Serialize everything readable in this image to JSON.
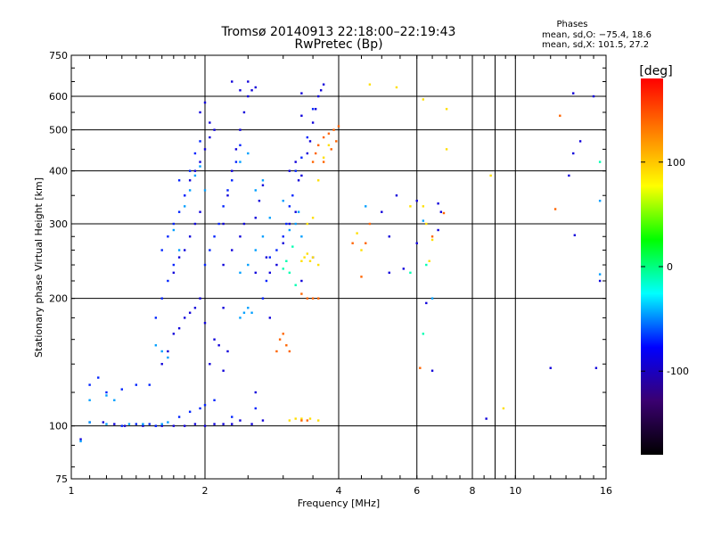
{
  "chart_data": {
    "type": "scatter",
    "title": "Tromsø 20140913 22:18:00–22:19:43",
    "subtitle": "RwPretec (Bp)",
    "xlabel": "Frequency [MHz]",
    "ylabel": "Stationary phase Virtual Height [km]",
    "x_scale": "log",
    "y_scale": "log",
    "xlim": [
      1,
      16
    ],
    "ylim": [
      75,
      750
    ],
    "x_ticks": [
      1,
      2,
      4,
      6,
      8,
      10,
      16
    ],
    "y_ticks": [
      75,
      100,
      200,
      300,
      400,
      500,
      600,
      750
    ],
    "x_grid": [
      2,
      4,
      6,
      8,
      9,
      10
    ],
    "y_grid": [
      100,
      200,
      300,
      400,
      500,
      600
    ],
    "grid": true,
    "phase_stats": {
      "header": "Phases",
      "line_o": "mean, sd,O: −75.4, 18.6",
      "line_x": "mean, sd,X: 101.5, 27.2"
    },
    "colorbar": {
      "label": "[deg]",
      "range": [
        -180,
        180
      ],
      "ticks": [
        100,
        0,
        -100
      ],
      "colors": [
        "#ff0000",
        "#ff8000",
        "#ffff00",
        "#00ff00",
        "#00ffff",
        "#0000ff",
        "#3a0070",
        "#000000"
      ]
    },
    "series": [
      {
        "phase_deg": -90,
        "points": [
          [
            1.05,
            93
          ],
          [
            1.1,
            102
          ],
          [
            1.18,
            102
          ],
          [
            1.25,
            101
          ],
          [
            1.32,
            100
          ],
          [
            1.45,
            100
          ],
          [
            1.55,
            100
          ],
          [
            1.6,
            100
          ],
          [
            1.7,
            100
          ],
          [
            1.8,
            100
          ],
          [
            1.9,
            101
          ],
          [
            2.0,
            100
          ],
          [
            2.1,
            101
          ],
          [
            2.2,
            101
          ],
          [
            2.3,
            101
          ],
          [
            2.4,
            103
          ],
          [
            2.55,
            101
          ],
          [
            2.7,
            103
          ],
          [
            1.6,
            140
          ],
          [
            1.65,
            150
          ],
          [
            1.7,
            165
          ],
          [
            1.75,
            170
          ],
          [
            1.8,
            180
          ],
          [
            1.85,
            185
          ],
          [
            1.9,
            190
          ],
          [
            1.95,
            200
          ],
          [
            1.7,
            230
          ],
          [
            1.75,
            250
          ],
          [
            1.8,
            260
          ],
          [
            1.85,
            280
          ],
          [
            1.9,
            300
          ],
          [
            1.95,
            320
          ],
          [
            1.8,
            350
          ],
          [
            1.85,
            380
          ],
          [
            1.9,
            400
          ],
          [
            1.95,
            420
          ],
          [
            2.0,
            450
          ],
          [
            2.05,
            480
          ],
          [
            2.1,
            500
          ],
          [
            2.05,
            520
          ],
          [
            1.95,
            550
          ],
          [
            2.0,
            580
          ],
          [
            2.2,
            300
          ],
          [
            2.25,
            350
          ],
          [
            2.3,
            400
          ],
          [
            2.35,
            450
          ],
          [
            2.4,
            500
          ],
          [
            2.45,
            550
          ],
          [
            2.5,
            600
          ],
          [
            2.4,
            620
          ],
          [
            2.55,
            620
          ],
          [
            2.6,
            630
          ],
          [
            2.3,
            650
          ],
          [
            2.5,
            650
          ],
          [
            2.2,
            240
          ],
          [
            2.3,
            260
          ],
          [
            2.4,
            280
          ],
          [
            2.45,
            300
          ],
          [
            2.6,
            310
          ],
          [
            2.65,
            340
          ],
          [
            2.7,
            370
          ],
          [
            2.75,
            250
          ],
          [
            2.8,
            230
          ],
          [
            3.1,
            400
          ],
          [
            3.2,
            420
          ],
          [
            3.25,
            380
          ],
          [
            3.3,
            390
          ],
          [
            3.4,
            440
          ],
          [
            3.45,
            470
          ],
          [
            3.5,
            520
          ],
          [
            3.55,
            560
          ],
          [
            3.6,
            600
          ],
          [
            3.65,
            620
          ],
          [
            3.7,
            640
          ],
          [
            3.3,
            540
          ],
          [
            3.3,
            610
          ],
          [
            2.0,
            175
          ],
          [
            2.1,
            160
          ],
          [
            2.15,
            155
          ],
          [
            2.05,
            140
          ],
          [
            2.2,
            190
          ],
          [
            2.6,
            230
          ],
          [
            2.9,
            240
          ],
          [
            3.0,
            270
          ],
          [
            3.1,
            300
          ],
          [
            3.2,
            320
          ],
          [
            2.2,
            135
          ],
          [
            2.25,
            150
          ],
          [
            2.6,
            120
          ],
          [
            2.8,
            180
          ],
          [
            3.3,
            220
          ],
          [
            3.5,
            250
          ],
          [
            6.7,
            335
          ],
          [
            6.8,
            320
          ],
          [
            5.2,
            230
          ],
          [
            5.6,
            235
          ],
          [
            6.0,
            270
          ],
          [
            6.3,
            195
          ],
          [
            6.5,
            135
          ],
          [
            6.7,
            290
          ],
          [
            5.2,
            280
          ],
          [
            5.0,
            320
          ],
          [
            5.4,
            350
          ],
          [
            6.0,
            340
          ],
          [
            13.5,
            440
          ],
          [
            14.0,
            470
          ],
          [
            13.2,
            390
          ],
          [
            15.5,
            220
          ],
          [
            15.0,
            600
          ],
          [
            13.5,
            610
          ],
          [
            12.0,
            137
          ],
          [
            15.2,
            137
          ],
          [
            8.6,
            104
          ],
          [
            13.6,
            282
          ]
        ]
      },
      {
        "phase_deg": -70,
        "points": [
          [
            1.3,
            100
          ],
          [
            1.4,
            101
          ],
          [
            1.5,
            101
          ],
          [
            1.55,
            100
          ],
          [
            1.1,
            125
          ],
          [
            1.15,
            130
          ],
          [
            1.2,
            120
          ],
          [
            1.3,
            122
          ],
          [
            1.4,
            125
          ],
          [
            1.5,
            125
          ],
          [
            1.55,
            180
          ],
          [
            1.6,
            200
          ],
          [
            1.65,
            220
          ],
          [
            1.7,
            240
          ],
          [
            1.6,
            260
          ],
          [
            1.65,
            280
          ],
          [
            1.7,
            300
          ],
          [
            1.75,
            320
          ],
          [
            1.8,
            350
          ],
          [
            1.75,
            380
          ],
          [
            1.85,
            400
          ],
          [
            1.9,
            440
          ],
          [
            1.95,
            470
          ],
          [
            2.0,
            240
          ],
          [
            2.05,
            260
          ],
          [
            2.1,
            280
          ],
          [
            2.15,
            300
          ],
          [
            2.2,
            330
          ],
          [
            2.25,
            360
          ],
          [
            2.3,
            380
          ],
          [
            2.35,
            420
          ],
          [
            2.4,
            460
          ],
          [
            2.7,
            200
          ],
          [
            2.75,
            220
          ],
          [
            2.8,
            250
          ],
          [
            2.9,
            260
          ],
          [
            3.0,
            280
          ],
          [
            3.05,
            300
          ],
          [
            3.1,
            330
          ],
          [
            3.15,
            350
          ],
          [
            3.2,
            400
          ],
          [
            3.3,
            430
          ],
          [
            3.4,
            480
          ],
          [
            3.5,
            560
          ],
          [
            1.95,
            110
          ],
          [
            2.0,
            112
          ],
          [
            2.1,
            115
          ],
          [
            1.75,
            105
          ],
          [
            1.85,
            108
          ],
          [
            2.3,
            105
          ],
          [
            2.6,
            110
          ]
        ]
      },
      {
        "phase_deg": -45,
        "points": [
          [
            1.05,
            92
          ],
          [
            1.1,
            102
          ],
          [
            1.2,
            101
          ],
          [
            1.35,
            101
          ],
          [
            1.45,
            101
          ],
          [
            1.6,
            101
          ],
          [
            1.65,
            102
          ],
          [
            1.1,
            115
          ],
          [
            1.2,
            118
          ],
          [
            1.25,
            115
          ],
          [
            1.8,
            330
          ],
          [
            1.85,
            360
          ],
          [
            1.9,
            390
          ],
          [
            1.95,
            410
          ],
          [
            2.0,
            360
          ],
          [
            1.7,
            290
          ],
          [
            1.75,
            260
          ],
          [
            2.4,
            180
          ],
          [
            2.45,
            185
          ],
          [
            2.5,
            190
          ],
          [
            2.55,
            185
          ],
          [
            2.4,
            230
          ],
          [
            2.5,
            240
          ],
          [
            2.6,
            260
          ],
          [
            2.7,
            280
          ],
          [
            2.8,
            310
          ],
          [
            3.1,
            290
          ],
          [
            3.2,
            300
          ],
          [
            3.25,
            320
          ],
          [
            3.3,
            280
          ],
          [
            3.0,
            340
          ],
          [
            2.6,
            360
          ],
          [
            2.7,
            380
          ],
          [
            2.4,
            420
          ],
          [
            2.5,
            440
          ],
          [
            1.55,
            155
          ],
          [
            1.6,
            150
          ],
          [
            1.65,
            145
          ],
          [
            4.6,
            330
          ],
          [
            6.2,
            305
          ],
          [
            6.5,
            200
          ],
          [
            15.5,
            228
          ],
          [
            15.5,
            340
          ]
        ]
      },
      {
        "phase_deg": -10,
        "points": [
          [
            3.0,
            235
          ],
          [
            3.1,
            230
          ],
          [
            3.2,
            215
          ],
          [
            3.05,
            245
          ],
          [
            3.15,
            265
          ],
          [
            6.2,
            165
          ],
          [
            5.8,
            230
          ],
          [
            6.3,
            240
          ],
          [
            15.5,
            420
          ]
        ]
      },
      {
        "phase_deg": 90,
        "points": [
          [
            3.3,
            245
          ],
          [
            3.35,
            250
          ],
          [
            3.4,
            255
          ],
          [
            3.45,
            245
          ],
          [
            3.5,
            250
          ],
          [
            3.6,
            240
          ],
          [
            3.4,
            300
          ],
          [
            3.5,
            310
          ],
          [
            3.6,
            380
          ],
          [
            3.7,
            430
          ],
          [
            3.8,
            460
          ],
          [
            3.2,
            104
          ],
          [
            3.3,
            104
          ],
          [
            3.1,
            103
          ],
          [
            3.45,
            104
          ],
          [
            3.6,
            103
          ],
          [
            4.7,
            640
          ],
          [
            5.4,
            630
          ],
          [
            6.2,
            590
          ],
          [
            7.0,
            560
          ],
          [
            8.8,
            390
          ],
          [
            9.4,
            110
          ],
          [
            6.2,
            330
          ],
          [
            6.3,
            300
          ],
          [
            5.8,
            330
          ],
          [
            4.5,
            260
          ],
          [
            4.4,
            285
          ],
          [
            6.4,
            245
          ],
          [
            6.5,
            275
          ],
          [
            7.0,
            450
          ]
        ]
      },
      {
        "phase_deg": 140,
        "points": [
          [
            3.5,
            420
          ],
          [
            3.55,
            440
          ],
          [
            3.6,
            460
          ],
          [
            3.7,
            480
          ],
          [
            3.8,
            490
          ],
          [
            3.9,
            500
          ],
          [
            4.0,
            510
          ],
          [
            3.85,
            450
          ],
          [
            3.95,
            470
          ],
          [
            3.3,
            205
          ],
          [
            3.4,
            200
          ],
          [
            3.5,
            200
          ],
          [
            3.6,
            200
          ],
          [
            2.9,
            150
          ],
          [
            2.95,
            160
          ],
          [
            3.0,
            165
          ],
          [
            3.05,
            155
          ],
          [
            3.1,
            150
          ],
          [
            3.3,
            103
          ],
          [
            3.4,
            103
          ],
          [
            4.3,
            270
          ],
          [
            4.6,
            270
          ],
          [
            4.7,
            300
          ],
          [
            6.5,
            280
          ],
          [
            6.9,
            318
          ],
          [
            12.6,
            540
          ],
          [
            12.3,
            325
          ],
          [
            6.1,
            137
          ],
          [
            4.5,
            225
          ],
          [
            3.7,
            420
          ]
        ]
      }
    ]
  }
}
